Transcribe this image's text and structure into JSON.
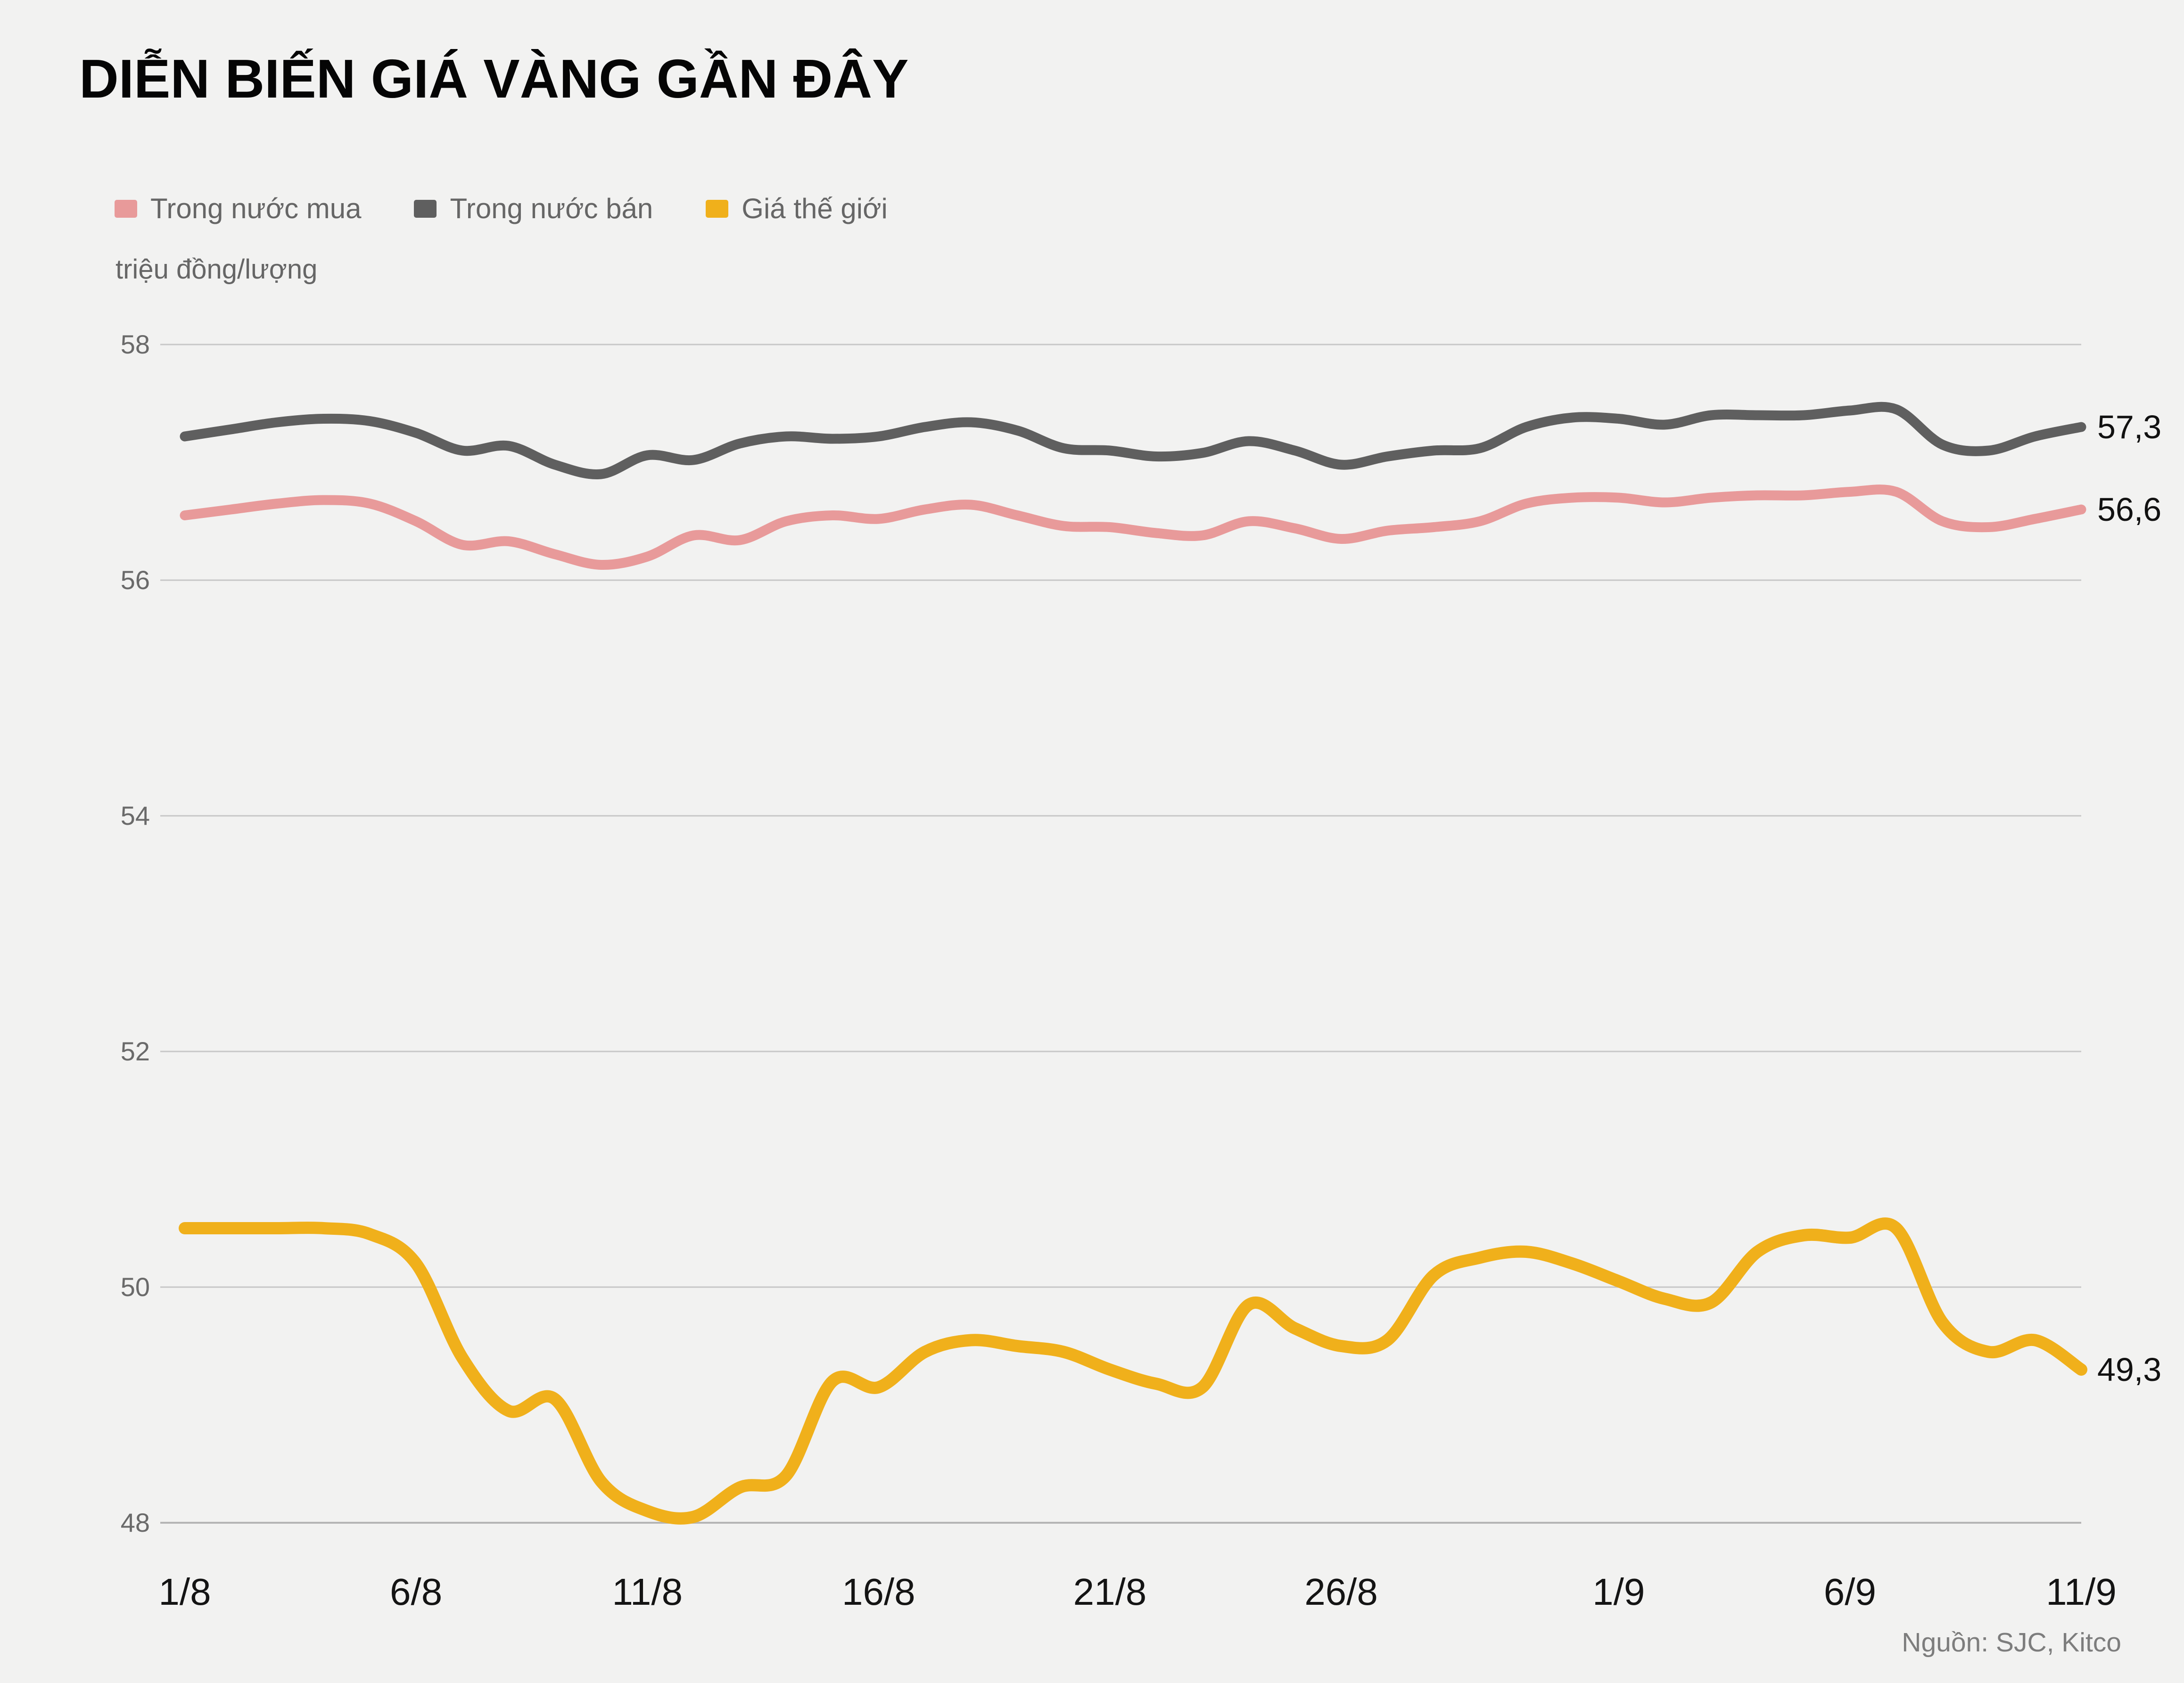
{
  "title": "DIỄN BIẾN GIÁ VÀNG GẦN ĐÂY",
  "unit_label": "triệu đồng/lượng",
  "source": "Nguồn: SJC, Kitco",
  "colors": {
    "background": "#f2f2f1",
    "grid": "#c7c7c7",
    "baseline": "#b5b5b5",
    "y_tick_text": "#6a6a6a",
    "x_tick_text": "#141414",
    "end_label_text": "#111111"
  },
  "chart_data": {
    "type": "line",
    "title": "DIỄN BIẾN GIÁ VÀNG GẦN ĐÂY",
    "ylabel": "triệu đồng/lượng",
    "ylim": [
      48,
      58
    ],
    "y_ticks": [
      58,
      56,
      54,
      52,
      50,
      48
    ],
    "grid": "horizontal",
    "legend_position": "top-left",
    "x_day_range": [
      1,
      42
    ],
    "x_tick_days": [
      1,
      6,
      11,
      16,
      21,
      26,
      32,
      37,
      42
    ],
    "x_tick_labels": [
      "1/8",
      "6/8",
      "11/8",
      "16/8",
      "21/8",
      "26/8",
      "1/9",
      "6/9",
      "11/9"
    ],
    "series": [
      {
        "name": "Trong nước bán",
        "color": "#5f5f5f",
        "stroke_width": 21,
        "end_label": "57,3",
        "values": [
          57.22,
          57.28,
          57.34,
          57.37,
          57.35,
          57.25,
          57.1,
          57.14,
          56.98,
          56.9,
          57.06,
          57.02,
          57.16,
          57.22,
          57.2,
          57.22,
          57.3,
          57.34,
          57.27,
          57.12,
          57.1,
          57.05,
          57.08,
          57.18,
          57.1,
          56.98,
          57.05,
          57.1,
          57.12,
          57.3,
          57.38,
          57.37,
          57.32,
          57.4,
          57.4,
          57.4,
          57.44,
          57.45,
          57.15,
          57.1,
          57.22,
          57.3
        ]
      },
      {
        "name": "Trong nước mua",
        "color": "#e89a9a",
        "stroke_width": 21,
        "end_label": "56,6",
        "values": [
          56.55,
          56.6,
          56.65,
          56.68,
          56.65,
          56.5,
          56.3,
          56.33,
          56.22,
          56.13,
          56.2,
          56.38,
          56.34,
          56.5,
          56.55,
          56.52,
          56.6,
          56.64,
          56.55,
          56.46,
          56.45,
          56.4,
          56.38,
          56.5,
          56.44,
          56.35,
          56.42,
          56.45,
          56.5,
          56.65,
          56.7,
          56.7,
          56.66,
          56.7,
          56.72,
          56.72,
          56.75,
          56.75,
          56.5,
          56.45,
          56.52,
          56.6
        ]
      },
      {
        "name": "Giá thế giới",
        "color": "#f0b01b",
        "stroke_width": 26,
        "end_label": "49,3",
        "values": [
          50.5,
          50.5,
          50.5,
          50.5,
          50.45,
          50.2,
          49.4,
          48.95,
          49.05,
          48.35,
          48.1,
          48.05,
          48.3,
          48.4,
          49.2,
          49.15,
          49.45,
          49.55,
          49.5,
          49.45,
          49.3,
          49.18,
          49.15,
          49.85,
          49.65,
          49.5,
          49.55,
          50.1,
          50.25,
          50.3,
          50.2,
          50.05,
          49.9,
          49.87,
          50.3,
          50.44,
          50.42,
          50.5,
          49.7,
          49.45,
          49.55,
          49.3
        ]
      }
    ],
    "legend_order": [
      1,
      0,
      2
    ]
  }
}
